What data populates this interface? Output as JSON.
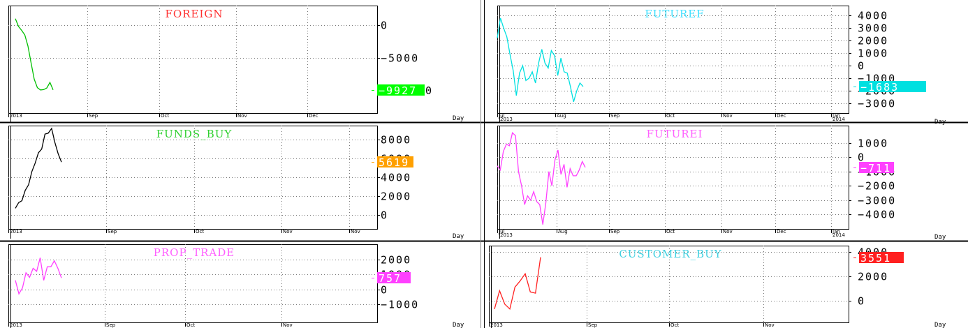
{
  "chart_data": [
    {
      "type": "line",
      "title": "FOREIGN",
      "color": "#00c000",
      "title_color": "#ff3030",
      "xlabel": "Day",
      "ylim": [
        -13500,
        3000
      ],
      "yticks": [
        0,
        -5000
      ],
      "ytick_labels": [
        "0",
        "−5000"
      ],
      "x_ticks": [
        "2013",
        "Sep",
        "Oct",
        "Nov",
        "Dec"
      ],
      "current": {
        "value": -9927,
        "label": "−9927",
        "color": "#00ff00",
        "tail": "0"
      },
      "values": [
        1000,
        -200,
        -800,
        -1500,
        -3200,
        -5800,
        -8300,
        -9600,
        -9950,
        -9900,
        -9650,
        -8800,
        -9927
      ]
    },
    {
      "type": "line",
      "title": "FUTUREF",
      "color": "#00e0e0",
      "title_color": "#40e0ff",
      "xlabel": "Day",
      "ylim": [
        -3800,
        4800
      ],
      "yticks": [
        4000,
        3000,
        2000,
        1000,
        0,
        -1000,
        -2000,
        -3000
      ],
      "ytick_labels": [
        "4000",
        "3000",
        "2000",
        "1000",
        "0",
        "−1000",
        "−2000",
        "−3000"
      ],
      "x_ticks": [
        "Jul",
        "Aug",
        "Sep",
        "Oct",
        "Nov",
        "Dec",
        "Jan"
      ],
      "x_tick_years": [
        "2013",
        "2014"
      ],
      "current": {
        "value": -1683,
        "label": "−1683",
        "color": "#00e0e0"
      },
      "values": [
        2200,
        3800,
        3000,
        2300,
        900,
        -400,
        -2400,
        -600,
        0,
        -1200,
        -1000,
        -500,
        -1400,
        200,
        1300,
        200,
        -200,
        1200,
        800,
        -800,
        600,
        -500,
        -600,
        -1700,
        -2900,
        -2000,
        -1400,
        -1683
      ]
    },
    {
      "type": "line",
      "title": "FUNDS_BUY",
      "color": "#000000",
      "title_color": "#30d030",
      "xlabel": "Day",
      "ylim": [
        -1500,
        9500
      ],
      "yticks": [
        8000,
        6000,
        4000,
        2000,
        0
      ],
      "ytick_labels": [
        "8000",
        "6000",
        "4000",
        "2000",
        "0"
      ],
      "x_ticks": [
        "2013",
        "Sep",
        "Oct",
        "Nov",
        "Nov"
      ],
      "current": {
        "value": 5619,
        "label": "5619",
        "color": "#ffa000"
      },
      "values": [
        700,
        1300,
        1500,
        2600,
        3200,
        4600,
        5500,
        6600,
        7000,
        8600,
        8700,
        9200,
        7700,
        6500,
        5619
      ]
    },
    {
      "type": "line",
      "title": "FUTUREI",
      "color": "#ff40ff",
      "title_color": "#ff60ff",
      "xlabel": "Day",
      "ylim": [
        -5000,
        2200
      ],
      "yticks": [
        1000,
        0,
        -1000,
        -2000,
        -3000,
        -4000
      ],
      "ytick_labels": [
        "1000",
        "0",
        "−1000",
        "−2000",
        "−3000",
        "−4000"
      ],
      "x_ticks": [
        "Jul",
        "Aug",
        "Sep",
        "Oct",
        "Nov",
        "Dec",
        "Jan"
      ],
      "x_tick_years": [
        "2013",
        "2014"
      ],
      "current": {
        "value": -711,
        "label": "−711",
        "color": "#ff40ff"
      },
      "values": [
        -600,
        -900,
        400,
        900,
        800,
        1700,
        1500,
        -1000,
        -2000,
        -3300,
        -2700,
        -3000,
        -2400,
        -3100,
        -3300,
        -4700,
        -3200,
        -1000,
        -2000,
        -200,
        500,
        -1200,
        -500,
        -2100,
        -800,
        -1300,
        -1300,
        -900,
        -300,
        -711
      ]
    },
    {
      "type": "line",
      "title": "PROP_TRADE",
      "color": "#ff40ff",
      "title_color": "#ff60ff",
      "xlabel": "Day",
      "ylim": [
        -2200,
        3000
      ],
      "yticks": [
        2000,
        1000,
        0,
        -1000
      ],
      "ytick_labels": [
        "2000",
        "1000",
        "0",
        "−1000"
      ],
      "x_ticks": [
        "2013",
        "Sep",
        "Oct",
        "Nov"
      ],
      "current": {
        "value": 757,
        "label": "757",
        "color": "#ff40ff"
      },
      "values": [
        600,
        -300,
        100,
        1100,
        800,
        1400,
        1200,
        2100,
        600,
        1500,
        1500,
        1900,
        1400,
        757
      ]
    },
    {
      "type": "line",
      "title": "CUSTOMER_BUY",
      "color": "#ff2020",
      "title_color": "#40d0e0",
      "xlabel": "Day",
      "ylim": [
        -1800,
        4500
      ],
      "yticks": [
        4000,
        2000,
        0
      ],
      "ytick_labels": [
        "4000",
        "2000",
        "0"
      ],
      "x_ticks": [
        "2013",
        "Sep",
        "Oct",
        "Nov"
      ],
      "current": {
        "value": 3551,
        "label": "3551",
        "color": "#ff2020"
      },
      "values": [
        -700,
        800,
        -300,
        -700,
        1100,
        1600,
        2200,
        700,
        600,
        3551
      ]
    }
  ]
}
